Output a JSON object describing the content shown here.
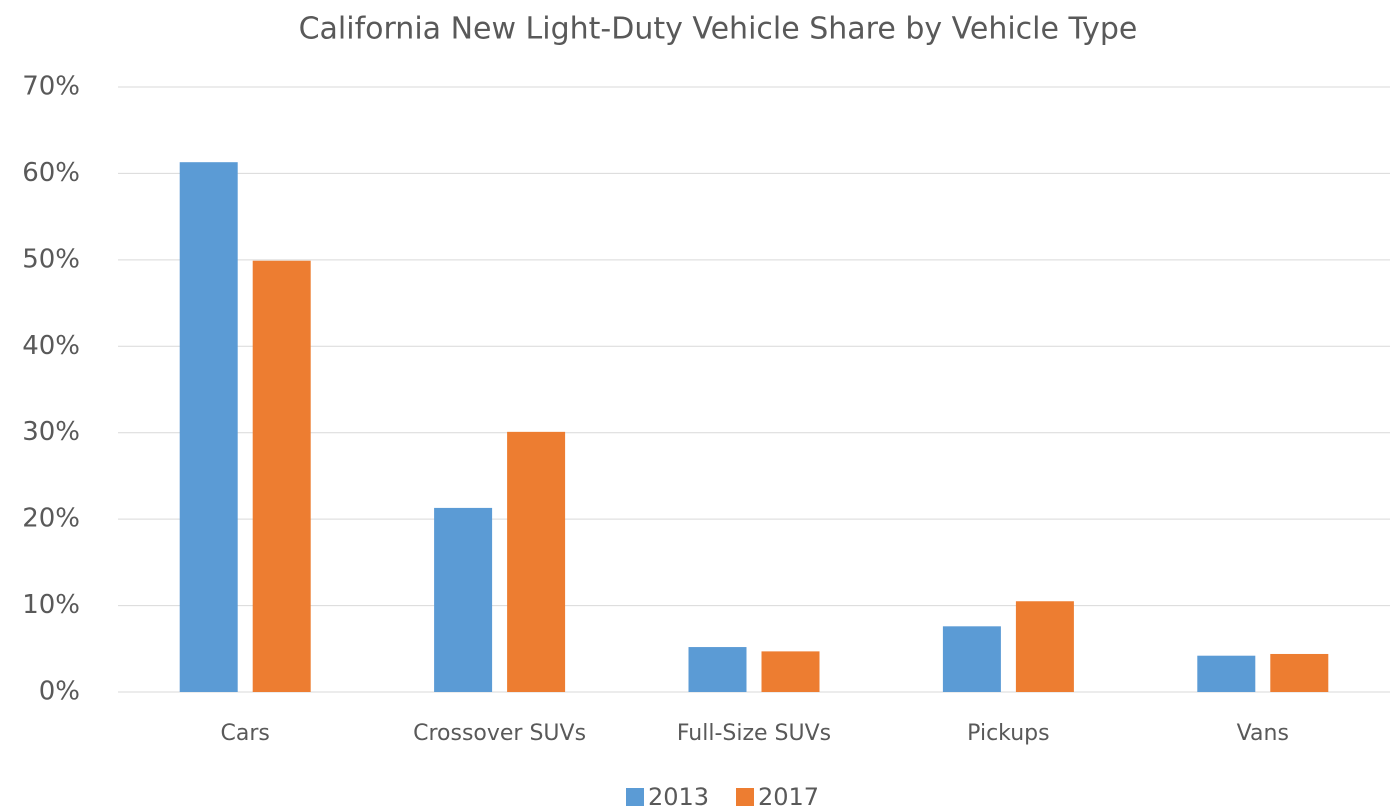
{
  "chart_data": {
    "type": "bar",
    "title": "California New Light-Duty Vehicle Share by Vehicle Type",
    "categories": [
      "Cars",
      "Crossover SUVs",
      "Full-Size SUVs",
      "Pickups",
      "Vans"
    ],
    "series": [
      {
        "name": "2013",
        "color": "#5b9bd5",
        "values": [
          61.3,
          21.3,
          5.2,
          7.6,
          4.2
        ]
      },
      {
        "name": "2017",
        "color": "#ed7d31",
        "values": [
          49.9,
          30.1,
          4.7,
          10.5,
          4.4
        ]
      }
    ],
    "ylim": [
      0,
      70
    ],
    "yticks": [
      {
        "value": 0,
        "label": "0%"
      },
      {
        "value": 10,
        "label": "10%"
      },
      {
        "value": 20,
        "label": "20%"
      },
      {
        "value": 30,
        "label": "30%"
      },
      {
        "value": 40,
        "label": "40%"
      },
      {
        "value": 50,
        "label": "50%"
      },
      {
        "value": 60,
        "label": "60%"
      },
      {
        "value": 70,
        "label": "70%"
      }
    ],
    "grid": true,
    "legend": "bottom"
  }
}
